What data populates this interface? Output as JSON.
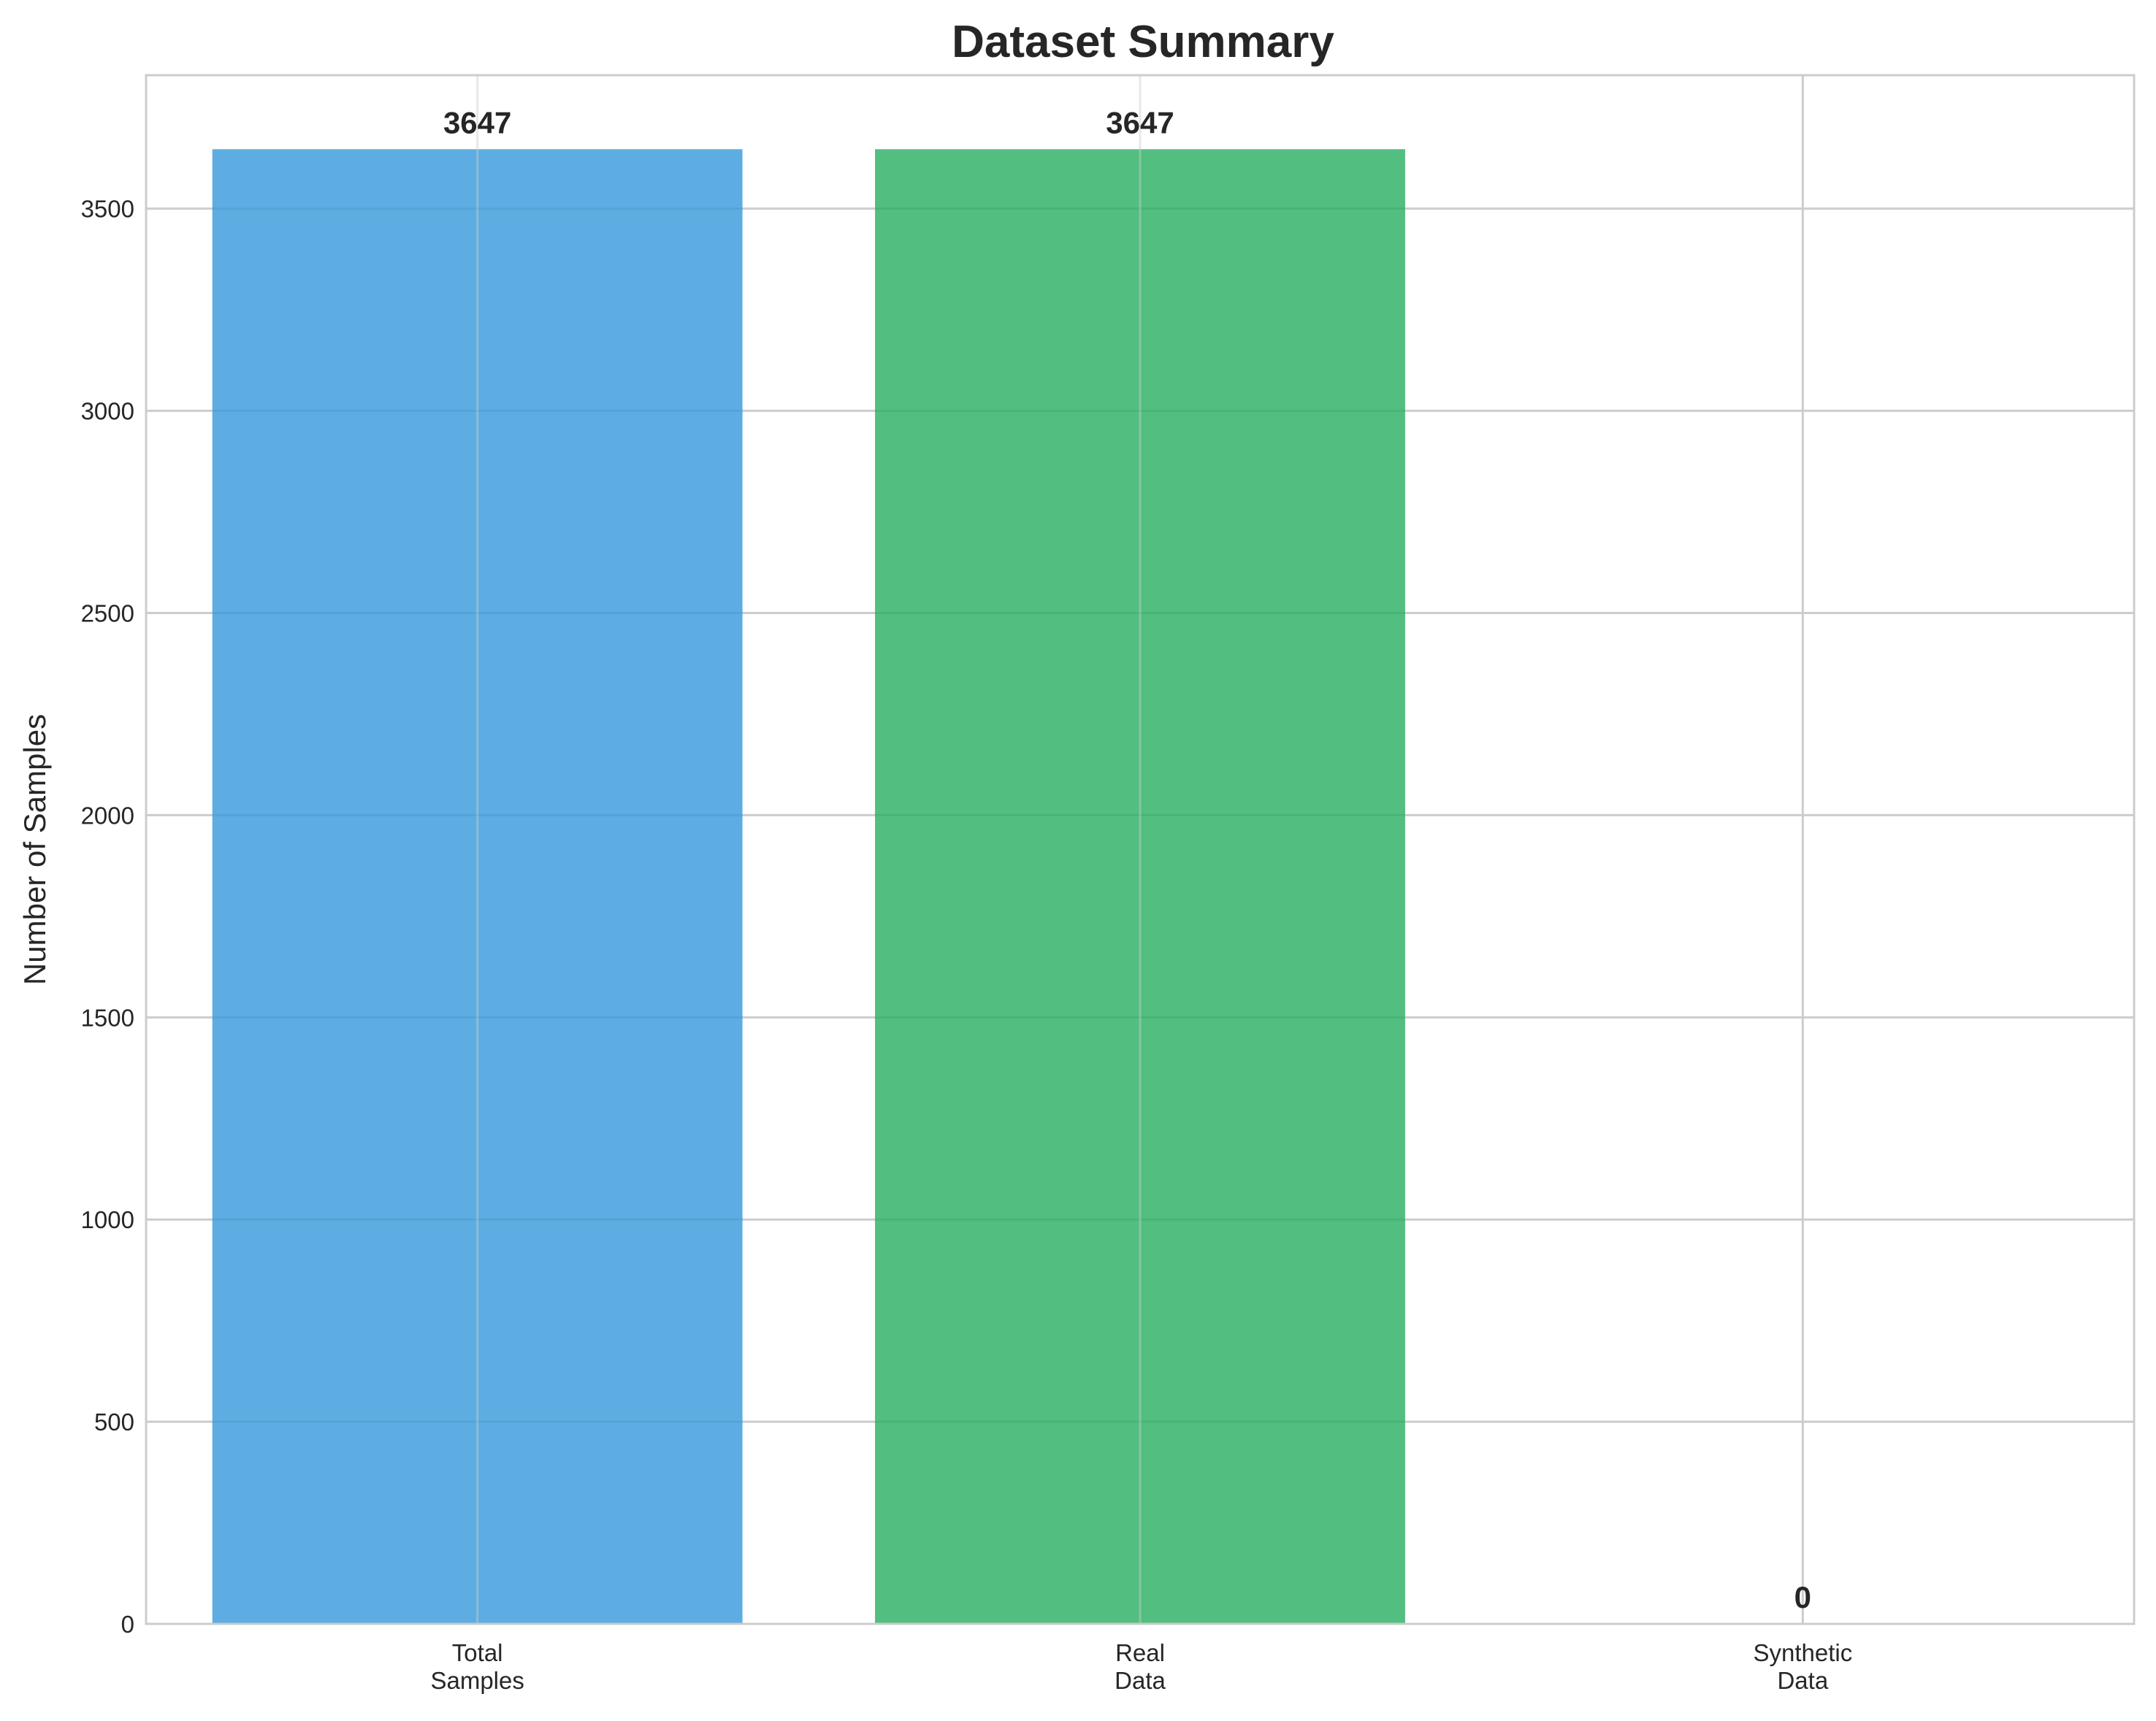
{
  "chart_data": {
    "type": "bar",
    "title": "Dataset Summary",
    "xlabel": "",
    "ylabel": "Number of Samples",
    "categories": [
      [
        "Total",
        "Samples"
      ],
      [
        "Real",
        "Data"
      ],
      [
        "Synthetic",
        "Data"
      ]
    ],
    "values": [
      3647,
      3647,
      0
    ],
    "data_labels": [
      "3647",
      "3647",
      "0"
    ],
    "colors": [
      "#3498db",
      "#27ae60",
      "#e67e22"
    ],
    "ylim": [
      0,
      3830
    ],
    "yticks": [
      0,
      500,
      1000,
      1500,
      2000,
      2500,
      3000,
      3500
    ],
    "grid": true
  }
}
